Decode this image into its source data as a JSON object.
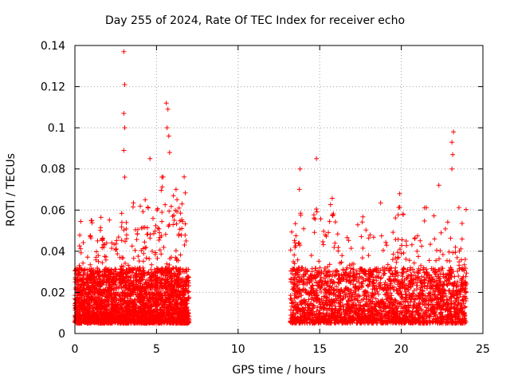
{
  "chart_data": {
    "type": "scatter",
    "title": "Day 255 of 2024, Rate Of TEC Index for receiver echo",
    "xlabel": "GPS time / hours",
    "ylabel": "ROTI / TECUs",
    "xlim": [
      0,
      25
    ],
    "ylim": [
      0,
      0.14
    ],
    "xticks": [
      "0",
      "5",
      "10",
      "15",
      "20",
      "25"
    ],
    "yticks": [
      "0",
      "0.02",
      "0.04",
      "0.06",
      "0.08",
      "0.1",
      "0.12",
      "0.14"
    ],
    "grid": true,
    "marker": "+",
    "color": "#ff0000",
    "series": [
      {
        "coverage": [
          [
            0,
            7.0
          ],
          [
            13.2,
            24.0
          ]
        ],
        "typical_range": [
          0.005,
          0.035
        ],
        "peaks": [
          {
            "x": 3.0,
            "y": 0.137
          },
          {
            "x": 3.05,
            "y": 0.121
          },
          {
            "x": 3.0,
            "y": 0.107
          },
          {
            "x": 3.05,
            "y": 0.1
          },
          {
            "x": 3.0,
            "y": 0.089
          },
          {
            "x": 3.05,
            "y": 0.076
          },
          {
            "x": 4.6,
            "y": 0.085
          },
          {
            "x": 5.6,
            "y": 0.112
          },
          {
            "x": 5.7,
            "y": 0.109
          },
          {
            "x": 5.65,
            "y": 0.1
          },
          {
            "x": 5.75,
            "y": 0.096
          },
          {
            "x": 5.8,
            "y": 0.088
          },
          {
            "x": 14.8,
            "y": 0.085
          },
          {
            "x": 13.8,
            "y": 0.08
          },
          {
            "x": 23.2,
            "y": 0.098
          },
          {
            "x": 23.1,
            "y": 0.093
          },
          {
            "x": 23.15,
            "y": 0.087
          },
          {
            "x": 23.1,
            "y": 0.08
          },
          {
            "x": 22.3,
            "y": 0.072
          },
          {
            "x": 19.9,
            "y": 0.068
          }
        ]
      }
    ]
  }
}
